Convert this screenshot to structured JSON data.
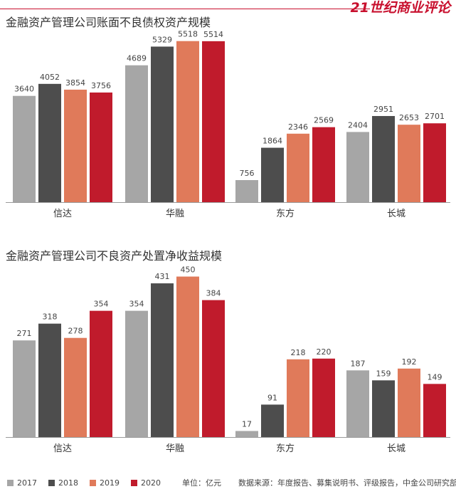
{
  "brand": {
    "text": "21世纪商业评论"
  },
  "colors": {
    "2017": "#a6a6a6",
    "2018": "#4d4d4d",
    "2019": "#e07a5a",
    "2020": "#c01b2c",
    "axis": "#999999",
    "brand": "#c8102e"
  },
  "legend": {
    "items": [
      {
        "label": "2017",
        "color": "#a6a6a6"
      },
      {
        "label": "2018",
        "color": "#4d4d4d"
      },
      {
        "label": "2019",
        "color": "#e07a5a"
      },
      {
        "label": "2020",
        "color": "#c01b2c"
      }
    ],
    "unit": "单位：亿元",
    "source": "数据来源：年度报告、募集说明书、评级报告，中金公司研究部"
  },
  "chart_data": [
    {
      "type": "bar",
      "title": "金融资产管理公司账面不良债权资产规模",
      "categories": [
        "信达",
        "华融",
        "东方",
        "长城"
      ],
      "series": [
        {
          "name": "2017",
          "values": [
            3640,
            4689,
            756,
            2404
          ]
        },
        {
          "name": "2018",
          "values": [
            4052,
            5329,
            1864,
            2951
          ]
        },
        {
          "name": "2019",
          "values": [
            3854,
            5518,
            2346,
            2653
          ]
        },
        {
          "name": "2020",
          "values": [
            3756,
            5514,
            2569,
            2701
          ]
        }
      ],
      "ylim": [
        0,
        5950
      ],
      "grid": false,
      "legend": "bottom"
    },
    {
      "type": "bar",
      "title": "金融资产管理公司不良资产处置净收益规模",
      "categories": [
        "信达",
        "华融",
        "东方",
        "长城"
      ],
      "series": [
        {
          "name": "2017",
          "values": [
            271,
            354,
            17,
            187
          ]
        },
        {
          "name": "2018",
          "values": [
            318,
            431,
            91,
            159
          ]
        },
        {
          "name": "2019",
          "values": [
            278,
            450,
            218,
            192
          ]
        },
        {
          "name": "2020",
          "values": [
            354,
            384,
            220,
            149
          ]
        }
      ],
      "ylim": [
        0,
        487
      ],
      "grid": false,
      "legend": "bottom"
    }
  ]
}
